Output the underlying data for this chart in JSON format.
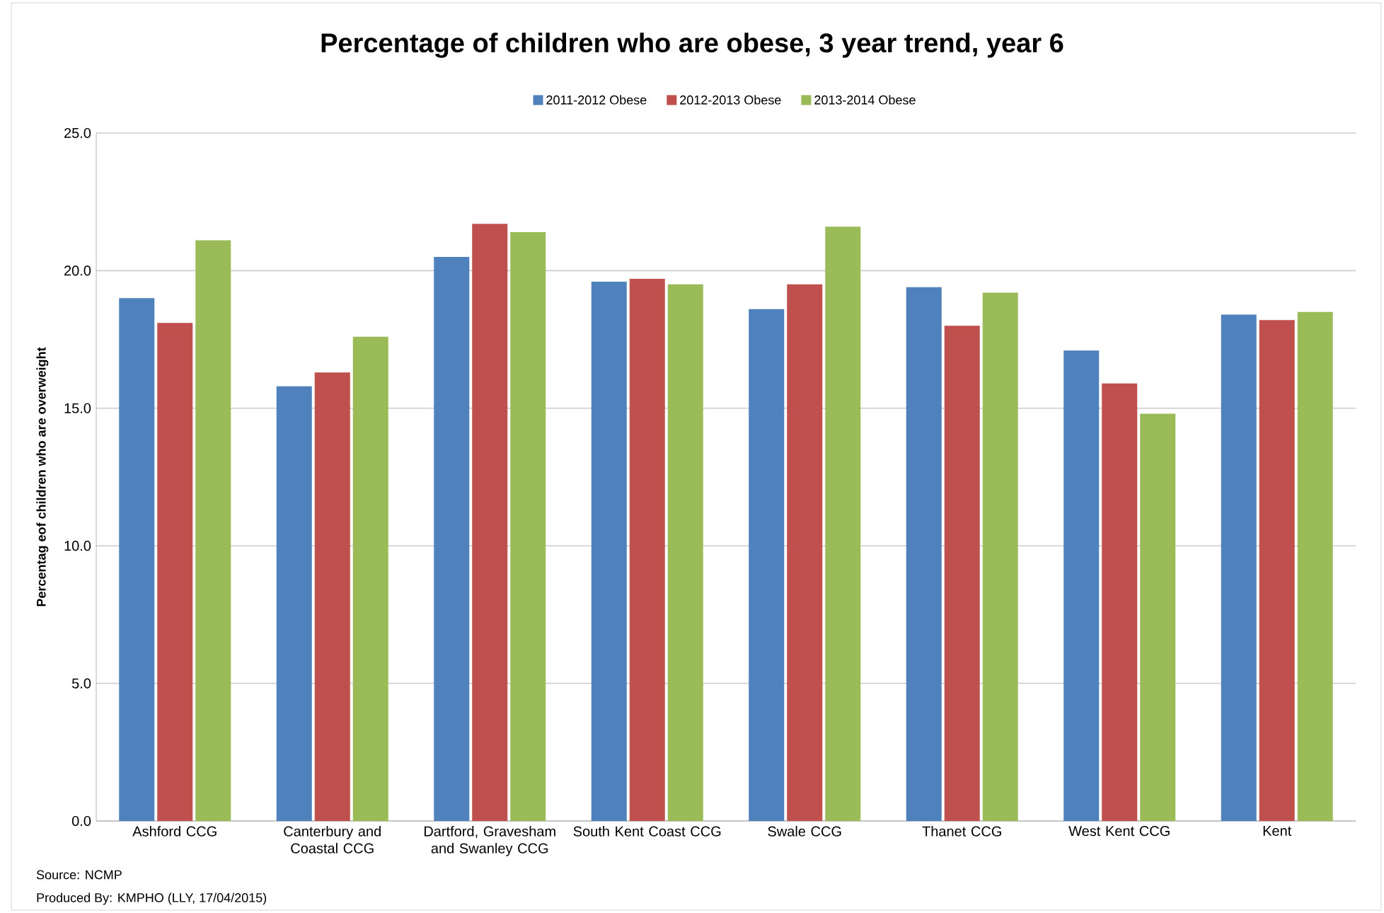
{
  "chart_data": {
    "type": "bar",
    "title": "Percentage of children who are obese, 3 year trend, year 6",
    "categories": [
      "Ashford CCG",
      "Canterbury and Coastal CCG",
      "Dartford, Gravesham and Swanley CCG",
      "South Kent Coast CCG",
      "Swale CCG",
      "Thanet CCG",
      "West Kent CCG",
      "Kent"
    ],
    "series": [
      {
        "name": "2011-2012 Obese",
        "color": "#4f81bd",
        "values": [
          19.0,
          15.8,
          20.5,
          19.6,
          18.6,
          19.4,
          17.1,
          18.4
        ]
      },
      {
        "name": "2012-2013 Obese",
        "color": "#c0504d",
        "values": [
          18.1,
          16.3,
          21.7,
          19.7,
          19.5,
          18.0,
          15.9,
          18.2
        ]
      },
      {
        "name": "2013-2014 Obese",
        "color": "#9bbb59",
        "values": [
          21.1,
          17.6,
          21.4,
          19.5,
          21.6,
          19.2,
          14.8,
          18.5
        ]
      }
    ],
    "ylabel": "Percentag eof children who are overweight",
    "ylim": [
      0,
      25
    ],
    "yticks": [
      {
        "value": 0,
        "label": "0.0"
      },
      {
        "value": 5,
        "label": "5.0"
      },
      {
        "value": 10,
        "label": "10.0"
      },
      {
        "value": 15,
        "label": "15.0"
      },
      {
        "value": 20,
        "label": "20.0"
      },
      {
        "value": 25,
        "label": "25.0"
      }
    ],
    "grid": "y",
    "legend": "top",
    "annotations": [
      "Source: NCMP",
      "Produced By: KMPHO (LLY, 17/04/2015)"
    ]
  }
}
